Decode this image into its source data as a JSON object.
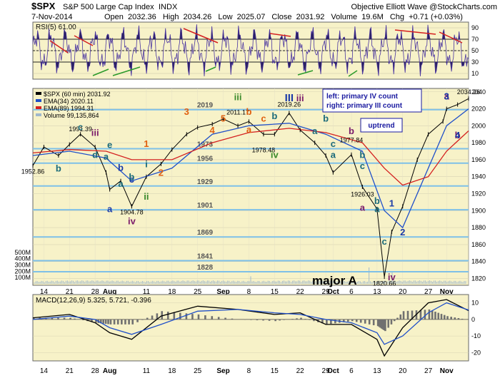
{
  "header": {
    "symbol": "$SPX",
    "name": "S&P 500 Large Cap Index",
    "exchange": "INDX",
    "brand": "Objective Elliott Wave @StockCharts.com",
    "date": "7-Nov-2014",
    "open_label": "Open",
    "open": "2032.36",
    "high_label": "High",
    "high": "2034.26",
    "low_label": "Low",
    "low": "2025.07",
    "close_label": "Close",
    "close": "2031.92",
    "volume_label": "Volume",
    "volume": "19.6M",
    "chg_label": "Chg",
    "chg": "+0.71 (+0.03%)"
  },
  "colors": {
    "price": "#000000",
    "ema34": "#1f4fc9",
    "ema89": "#d42020",
    "rsi": "#4a35a0",
    "level": "#7ec0e8",
    "annot_box": "#1a1aa0",
    "wave_orange": "#e06010",
    "wave_teal": "#1a6a7a",
    "wave_purple": "#7a1a6a",
    "wave_green": "#3a8a2a",
    "wave_blue": "#1a3aa8"
  },
  "chart_data": [
    {
      "type": "line",
      "panel": "rsi",
      "title": "RSI(5) 61.00",
      "ylim": [
        0,
        100
      ],
      "yticks": [
        "90",
        "70",
        "50",
        "30",
        "10"
      ],
      "reference_lines": [
        70,
        50,
        30
      ],
      "current": 61.0
    },
    {
      "type": "line",
      "panel": "price",
      "title": "$SPX (60 min) 2031.92",
      "ylim": [
        1812,
        2044
      ],
      "yticks": [
        "2040",
        "2020",
        "2000",
        "1980",
        "1960",
        "1940",
        "1920",
        "1900",
        "1880",
        "1860",
        "1840",
        "1820"
      ],
      "x_dates": [
        "Jul 11",
        "Jul 14",
        "Jul 21",
        "Jul 28",
        "Aug 1",
        "Aug 11",
        "Aug 18",
        "Aug 25",
        "Sep 1",
        "Sep 8",
        "Sep 15",
        "Sep 22",
        "Sep 29",
        "Oct 1",
        "Oct 6",
        "Oct 13",
        "Oct 20",
        "Oct 27",
        "Nov 1",
        "Nov 7"
      ],
      "series": [
        {
          "name": "$SPX (60 min) 2031.92",
          "x": [
            "Jul 11",
            "Jul 14",
            "Jul 18",
            "Jul 21",
            "Jul 24",
            "Jul 28",
            "Jul 31",
            "Aug 1",
            "Aug 4",
            "Aug 7",
            "Aug 11",
            "Aug 15",
            "Aug 18",
            "Aug 22",
            "Aug 25",
            "Aug 29",
            "Sep 1",
            "Sep 5",
            "Sep 8",
            "Sep 12",
            "Sep 15",
            "Sep 19",
            "Sep 22",
            "Sep 26",
            "Sep 29",
            "Oct 1",
            "Oct 6",
            "Oct 9",
            "Oct 13",
            "Oct 15",
            "Oct 17",
            "Oct 20",
            "Oct 24",
            "Oct 27",
            "Oct 31",
            "Nov 1",
            "Nov 4",
            "Nov 7"
          ],
          "values": [
            1953,
            1975,
            1965,
            1978,
            1990,
            1975,
            1945,
            1925,
            1935,
            1905,
            1940,
            1955,
            1972,
            1990,
            1998,
            2002,
            2008,
            2000,
            2005,
            1990,
            1990,
            2015,
            1995,
            1980,
            1965,
            1945,
            1966,
            1928,
            1902,
            1822,
            1875,
            1905,
            1960,
            1990,
            2005,
            2020,
            2025,
            2032
          ]
        },
        {
          "name": "EMA(34) 2020.11",
          "x": [
            "Jul 11",
            "Jul 21",
            "Jul 31",
            "Aug 7",
            "Aug 18",
            "Aug 29",
            "Sep 8",
            "Sep 19",
            "Sep 29",
            "Oct 9",
            "Oct 15",
            "Oct 20",
            "Oct 27",
            "Nov 1",
            "Nov 7"
          ],
          "values": [
            1965,
            1970,
            1962,
            1935,
            1950,
            1990,
            2000,
            2003,
            1990,
            1970,
            1900,
            1880,
            1950,
            2000,
            2020
          ]
        },
        {
          "name": "EMA(89) 1994.31",
          "x": [
            "Jul 11",
            "Jul 21",
            "Jul 31",
            "Aug 7",
            "Aug 18",
            "Aug 29",
            "Sep 8",
            "Sep 19",
            "Sep 29",
            "Oct 9",
            "Oct 15",
            "Oct 20",
            "Oct 27",
            "Nov 1",
            "Nov 7"
          ],
          "values": [
            1968,
            1972,
            1970,
            1960,
            1960,
            1980,
            1992,
            1997,
            1992,
            1980,
            1950,
            1930,
            1940,
            1970,
            1994
          ]
        }
      ],
      "legend": [
        "$SPX (60 min) 2031.92",
        "EMA(34) 2020.11",
        "EMA(89) 1994.31",
        "Volume 99,135,864"
      ],
      "levels": [
        {
          "label": "2019",
          "value": 2019
        },
        {
          "label": "1973",
          "value": 1973
        },
        {
          "label": "1956",
          "value": 1956
        },
        {
          "label": "1929",
          "value": 1929
        },
        {
          "label": "1901",
          "value": 1901
        },
        {
          "label": "1869",
          "value": 1869
        },
        {
          "label": "1841",
          "value": 1841
        },
        {
          "label": "1828",
          "value": 1828
        }
      ],
      "price_labels": [
        {
          "text": "1952.86",
          "x": "Jul 11",
          "y": 1953
        },
        {
          "text": "1991.39",
          "x": "Jul 24",
          "y": 1990
        },
        {
          "text": "1904.78",
          "x": "Aug 7",
          "y": 1905
        },
        {
          "text": "2011.17",
          "x": "Sep 5",
          "y": 2010
        },
        {
          "text": "1978.48",
          "x": "Sep 12",
          "y": 1978
        },
        {
          "text": "2019.26",
          "x": "Sep 19",
          "y": 2019
        },
        {
          "text": "1977.84",
          "x": "Oct 6",
          "y": 1977
        },
        {
          "text": "1926.03",
          "x": "Oct 9",
          "y": 1926
        },
        {
          "text": "1820.66",
          "x": "Oct 15",
          "y": 1821
        },
        {
          "text": "2034.26",
          "x": "Nov 7",
          "y": 2034
        }
      ],
      "annotations": {
        "box_counts": [
          "left: primary IV count",
          "right: primary III count"
        ],
        "uptrend": "uptrend",
        "major": "major A",
        "waves": [
          {
            "text": "b",
            "color": "wave_teal",
            "x": "Jul 18",
            "y": 1946
          },
          {
            "text": "c",
            "color": "wave_teal",
            "x": "Jul 24",
            "y": 1995
          },
          {
            "text": "iii",
            "color": "wave_purple",
            "x": "Jul 28",
            "y": 1988
          },
          {
            "text": "d",
            "color": "wave_teal",
            "x": "Jul 28",
            "y": 1962
          },
          {
            "text": "a",
            "color": "wave_teal",
            "x": "Jul 31",
            "y": 1960
          },
          {
            "text": "e",
            "color": "wave_teal",
            "x": "Aug 1",
            "y": 1974
          },
          {
            "text": "a",
            "color": "wave_blue",
            "x": "Aug 1",
            "y": 1898
          },
          {
            "text": "b",
            "color": "wave_blue",
            "x": "Aug 4",
            "y": 1947
          },
          {
            "text": "c",
            "color": "wave_blue",
            "x": "Aug 7",
            "y": 1933
          },
          {
            "text": "a",
            "color": "wave_teal",
            "x": "Aug 4",
            "y": 1928
          },
          {
            "text": "b",
            "color": "wave_teal",
            "x": "Aug 7",
            "y": 1936
          },
          {
            "text": "iv",
            "color": "wave_purple",
            "x": "Aug 7",
            "y": 1884
          },
          {
            "text": "i",
            "color": "wave_teal",
            "x": "Aug 11",
            "y": 1951
          },
          {
            "text": "ii",
            "color": "wave_green",
            "x": "Aug 11",
            "y": 1913
          },
          {
            "text": "1",
            "color": "wave_orange",
            "x": "Aug 11",
            "y": 1975
          },
          {
            "text": "2",
            "color": "wave_orange",
            "x": "Aug 15",
            "y": 1941
          },
          {
            "text": "3",
            "color": "wave_orange",
            "x": "Aug 22",
            "y": 2013
          },
          {
            "text": "4",
            "color": "wave_orange",
            "x": "Aug 29",
            "y": 1991
          },
          {
            "text": "5",
            "color": "wave_orange",
            "x": "Sep 1",
            "y": 2005
          },
          {
            "text": "iii",
            "color": "wave_green",
            "x": "Sep 5",
            "y": 2030
          },
          {
            "text": "a",
            "color": "wave_orange",
            "x": "Sep 8",
            "y": 1992
          },
          {
            "text": "b",
            "color": "wave_orange",
            "x": "Sep 8",
            "y": 2013
          },
          {
            "text": "c",
            "color": "wave_orange",
            "x": "Sep 12",
            "y": 2005
          },
          {
            "text": "b",
            "color": "wave_teal",
            "x": "Sep 15",
            "y": 2008
          },
          {
            "text": "iv",
            "color": "wave_green",
            "x": "Sep 15",
            "y": 1962
          },
          {
            "text": "III",
            "color": "wave_blue",
            "x": "Sep 19",
            "y": 2029
          },
          {
            "text": "iii",
            "color": "wave_purple",
            "x": "Sep 22",
            "y": 2029
          },
          {
            "text": "a",
            "color": "wave_teal",
            "x": "Sep 26",
            "y": 1990
          },
          {
            "text": "b",
            "color": "wave_teal",
            "x": "Sep 29",
            "y": 2005
          },
          {
            "text": "c",
            "color": "wave_teal",
            "x": "Oct 1",
            "y": 1975
          },
          {
            "text": "a",
            "color": "wave_teal",
            "x": "Oct 1",
            "y": 1962
          },
          {
            "text": "b",
            "color": "wave_purple",
            "x": "Oct 6",
            "y": 1990
          },
          {
            "text": "a",
            "color": "wave_purple",
            "x": "Oct 9",
            "y": 1900
          },
          {
            "text": "b",
            "color": "wave_teal",
            "x": "Oct 9",
            "y": 1962
          },
          {
            "text": "c",
            "color": "wave_teal",
            "x": "Oct 9",
            "y": 1949
          },
          {
            "text": "a",
            "color": "wave_teal",
            "x": "Oct 13",
            "y": 1898
          },
          {
            "text": "b",
            "color": "wave_teal",
            "x": "Oct 13",
            "y": 1908
          },
          {
            "text": "c",
            "color": "wave_teal",
            "x": "Oct 15",
            "y": 1860
          },
          {
            "text": "iv",
            "color": "wave_purple",
            "x": "Oct 17",
            "y": 1818
          },
          {
            "text": "1",
            "color": "wave_blue",
            "x": "Oct 17",
            "y": 1905
          },
          {
            "text": "2",
            "color": "wave_blue",
            "x": "Oct 20",
            "y": 1871
          },
          {
            "text": "a",
            "color": "wave_purple",
            "x": "Nov 1",
            "y": 2031
          },
          {
            "text": "3",
            "color": "wave_blue",
            "x": "Nov 1",
            "y": 2031
          },
          {
            "text": "b",
            "color": "wave_purple",
            "x": "Nov 4",
            "y": 1985
          },
          {
            "text": "4",
            "color": "wave_blue",
            "x": "Nov 4",
            "y": 1985
          }
        ]
      },
      "volume_ticks": [
        "500M",
        "400M",
        "300M",
        "200M",
        "100M"
      ],
      "volume_max": 520
    },
    {
      "type": "line",
      "panel": "macd",
      "title": "MACD(12,26,9) 5.325, 5.721, -0.396",
      "ylim": [
        -25,
        15
      ],
      "yticks": [
        "10",
        "0",
        "-10",
        "-20"
      ],
      "series": [
        {
          "name": "MACD",
          "x": [
            "Jul 11",
            "Jul 21",
            "Jul 28",
            "Aug 1",
            "Aug 7",
            "Aug 15",
            "Aug 25",
            "Sep 5",
            "Sep 15",
            "Sep 22",
            "Sep 29",
            "Oct 6",
            "Oct 13",
            "Oct 15",
            "Oct 20",
            "Oct 27",
            "Nov 1",
            "Nov 7"
          ],
          "values": [
            1,
            3,
            -2,
            -8,
            -12,
            2,
            8,
            6,
            3,
            4,
            -3,
            -3,
            -12,
            -22,
            -5,
            10,
            12,
            5.3
          ]
        },
        {
          "name": "Signal",
          "x": [
            "Jul 11",
            "Jul 21",
            "Jul 28",
            "Aug 1",
            "Aug 7",
            "Aug 15",
            "Aug 25",
            "Sep 5",
            "Sep 15",
            "Sep 22",
            "Sep 29",
            "Oct 6",
            "Oct 13",
            "Oct 15",
            "Oct 20",
            "Oct 27",
            "Nov 1",
            "Nov 7"
          ],
          "values": [
            0,
            2,
            0,
            -5,
            -9,
            -3,
            5,
            6,
            4,
            3,
            0,
            -2,
            -8,
            -15,
            -10,
            4,
            10,
            5.7
          ]
        }
      ]
    }
  ],
  "x_axis": {
    "labels": [
      {
        "text": "14",
        "x": "Jul 14",
        "bold": false
      },
      {
        "text": "21",
        "x": "Jul 21",
        "bold": false
      },
      {
        "text": "28",
        "x": "Jul 28",
        "bold": false
      },
      {
        "text": "Aug",
        "x": "Aug 1",
        "bold": true
      },
      {
        "text": "11",
        "x": "Aug 11",
        "bold": false
      },
      {
        "text": "18",
        "x": "Aug 18",
        "bold": false
      },
      {
        "text": "25",
        "x": "Aug 25",
        "bold": false
      },
      {
        "text": "Sep",
        "x": "Sep 1",
        "bold": true
      },
      {
        "text": "8",
        "x": "Sep 8",
        "bold": false
      },
      {
        "text": "15",
        "x": "Sep 15",
        "bold": false
      },
      {
        "text": "22",
        "x": "Sep 22",
        "bold": false
      },
      {
        "text": "29",
        "x": "Sep 29",
        "bold": false
      },
      {
        "text": "Oct",
        "x": "Oct 1",
        "bold": true
      },
      {
        "text": "6",
        "x": "Oct 6",
        "bold": false
      },
      {
        "text": "13",
        "x": "Oct 13",
        "bold": false
      },
      {
        "text": "20",
        "x": "Oct 20",
        "bold": false
      },
      {
        "text": "27",
        "x": "Oct 27",
        "bold": false
      },
      {
        "text": "Nov",
        "x": "Nov 1",
        "bold": true
      }
    ]
  }
}
